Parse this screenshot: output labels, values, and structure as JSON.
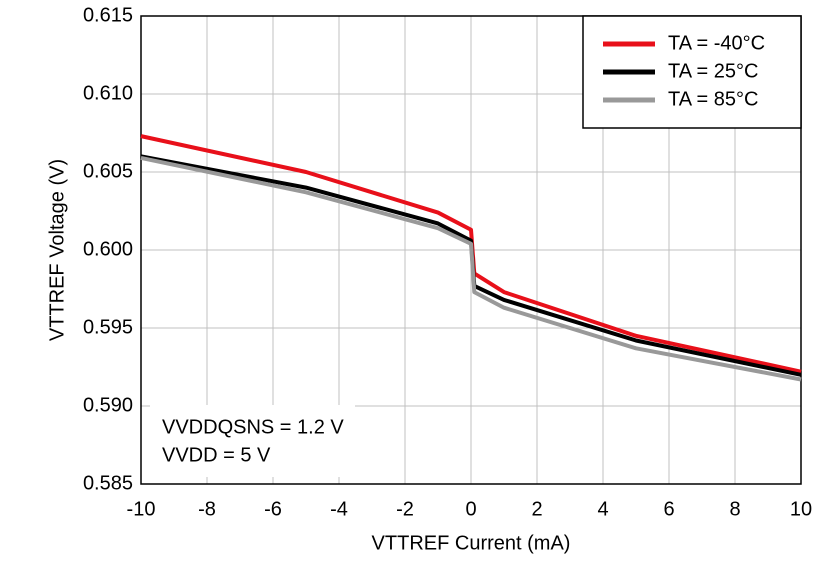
{
  "chart_data": {
    "type": "line",
    "xlabel": "VTTREF Current (mA)",
    "ylabel": "VTTREF Voltage (V)",
    "annotations": [
      "VVDDQSNS = 1.2 V",
      "VVDD = 5 V"
    ],
    "x": [
      -10,
      -5,
      -1,
      0,
      0.1,
      1,
      5,
      10
    ],
    "series": [
      {
        "name": "TA = -40°C",
        "color": "#e8101a",
        "values": [
          0.6073,
          0.605,
          0.6024,
          0.6013,
          0.5985,
          0.5973,
          0.5945,
          0.5922
        ]
      },
      {
        "name": "TA = 25°C",
        "color": "#000000",
        "values": [
          0.606,
          0.604,
          0.6017,
          0.6006,
          0.5977,
          0.5968,
          0.5942,
          0.592
        ]
      },
      {
        "name": "TA = 85°C",
        "color": "#999999",
        "values": [
          0.6059,
          0.6037,
          0.6014,
          0.6004,
          0.5973,
          0.5963,
          0.5937,
          0.5917
        ]
      }
    ],
    "xlim": [
      -10,
      10
    ],
    "xticks": [
      -10,
      -8,
      -6,
      -4,
      -2,
      0,
      2,
      4,
      6,
      8,
      10
    ],
    "ylim": [
      0.585,
      0.615
    ],
    "yticks": [
      0.585,
      {
        "value": 0.59,
        "label": "0.590"
      },
      0.595,
      {
        "value": 0.6,
        "label": "0.600"
      },
      0.605,
      {
        "value": 0.61,
        "label": "0.610"
      },
      0.615
    ],
    "grid": true,
    "legend": "upper right"
  }
}
